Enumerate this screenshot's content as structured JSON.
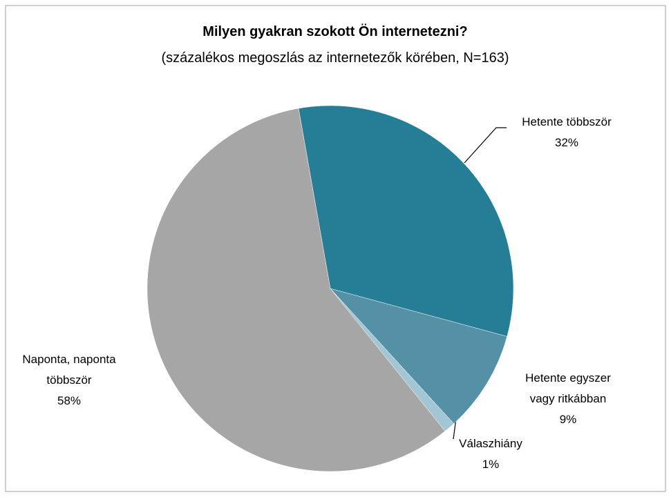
{
  "chart_data": {
    "type": "pie",
    "title": "Milyen gyakran szokott Ön internetezni?",
    "subtitle": "(százalékos megoszlás az internetezők körében, N=163)",
    "categories": [
      "Hetente többször",
      "Hetente egyszer\nvagy ritkábban",
      "Válaszhiány",
      "Naponta, naponta\ntöbbször"
    ],
    "values": [
      32,
      9,
      1,
      58
    ],
    "value_labels": [
      "32%",
      "9%",
      "1%",
      "58%"
    ],
    "colors": [
      "#267d96",
      "#5490a6",
      "#a3c6d4",
      "#a6a6a6"
    ]
  }
}
